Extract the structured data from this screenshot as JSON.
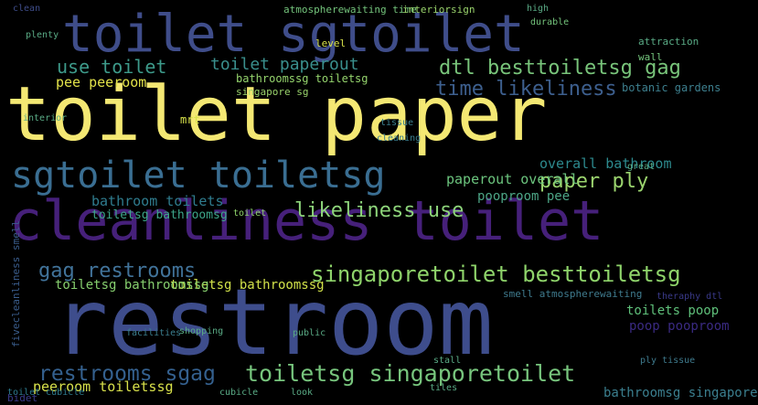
{
  "words": [
    {
      "text": "toilet paper",
      "color": "#f4e873"
    },
    {
      "text": "restroom",
      "color": "#3e4d8c"
    },
    {
      "text": "toilet sgtoilet",
      "color": "#3f4d8a"
    },
    {
      "text": "cleanliness toilet",
      "color": "#46207a"
    },
    {
      "text": "sgtoilet toiletsg",
      "color": "#3a6e92"
    },
    {
      "text": "toiletsg singaporetoilet",
      "color": "#77c57d"
    },
    {
      "text": "restrooms sgag",
      "color": "#34608e"
    },
    {
      "text": "singaporetoilet besttoiletsg",
      "color": "#8ed36a"
    },
    {
      "text": "dtl besttoiletsg gag",
      "color": "#78c47a"
    },
    {
      "text": "time likeliness",
      "color": "#3d5f8e"
    },
    {
      "text": "gag restrooms",
      "color": "#41739a"
    },
    {
      "text": "likeliness use",
      "color": "#8dd47a"
    },
    {
      "text": "paper ply",
      "color": "#9bd46e"
    },
    {
      "text": "use toilet",
      "color": "#3d9a8a"
    },
    {
      "text": "toilet paperout",
      "color": "#3a8f8d"
    },
    {
      "text": "paperout overall",
      "color": "#6cc57e"
    },
    {
      "text": "overall bathroom",
      "color": "#2d8a8e"
    },
    {
      "text": "bathroom toilets",
      "color": "#2f7c8e"
    },
    {
      "text": "toiletsg bathroomsg",
      "color": "#3da68a"
    },
    {
      "text": "pooproom pee",
      "color": "#4da686"
    },
    {
      "text": "toiletsg bathroomssg",
      "color": "#d2e24a"
    },
    {
      "text": "toiletsg bathroomssg",
      "color": "#86cf6e"
    },
    {
      "text": "toilets poop",
      "color": "#5fc07a"
    },
    {
      "text": "poop pooproom",
      "color": "#3a2a82"
    },
    {
      "text": "bathroomsg singapore",
      "color": "#3b7f8f"
    },
    {
      "text": "peeroom toiletssg",
      "color": "#d8e14b"
    },
    {
      "text": "pee peeroom",
      "color": "#e3e34a"
    },
    {
      "text": "bathroomssg toiletsg",
      "color": "#95d46d"
    },
    {
      "text": "singapore sg",
      "color": "#9ad46c"
    },
    {
      "text": "atmospherewaiting time",
      "color": "#74c47c"
    },
    {
      "text": "interiorsign",
      "color": "#9ad46c"
    },
    {
      "text": "smell atmospherewaiting",
      "color": "#3f7b8e"
    },
    {
      "text": "theraphy dtl",
      "color": "#3a3a8a"
    },
    {
      "text": "mrt",
      "color": "#d8e24a"
    },
    {
      "text": "level",
      "color": "#d8e24a"
    },
    {
      "text": "wall",
      "color": "#74c47c"
    },
    {
      "text": "botanic gardens",
      "color": "#3d7f8e"
    },
    {
      "text": "attraction",
      "color": "#5aac86"
    },
    {
      "text": "clean",
      "color": "#3f4d8a"
    },
    {
      "text": "interior",
      "color": "#5aac86"
    },
    {
      "text": "plenty",
      "color": "#5aac86"
    },
    {
      "text": "toilet",
      "color": "#8ed36a"
    },
    {
      "text": "tissue",
      "color": "#3b7f8f"
    },
    {
      "text": "cleaning",
      "color": "#3b7f8f"
    },
    {
      "text": "fivecleanliness smell",
      "color": "#3b5e8e"
    },
    {
      "text": "stall",
      "color": "#5aac86"
    },
    {
      "text": "ply tissue",
      "color": "#3f7b8e"
    },
    {
      "text": "durable",
      "color": "#74c47c"
    },
    {
      "text": "toilet cubicle",
      "color": "#2d7a8e"
    },
    {
      "text": "cubicle",
      "color": "#5aac86"
    },
    {
      "text": "look",
      "color": "#5aac86"
    },
    {
      "text": "tiles",
      "color": "#5aac86"
    },
    {
      "text": "high",
      "color": "#5aac86"
    },
    {
      "text": "great",
      "color": "#5aac86"
    },
    {
      "text": "bidet",
      "color": "#3a3a8a"
    },
    {
      "text": "shopping",
      "color": "#5aac86"
    },
    {
      "text": "facilities",
      "color": "#3b7f8f"
    },
    {
      "text": "public",
      "color": "#5aac86"
    }
  ]
}
